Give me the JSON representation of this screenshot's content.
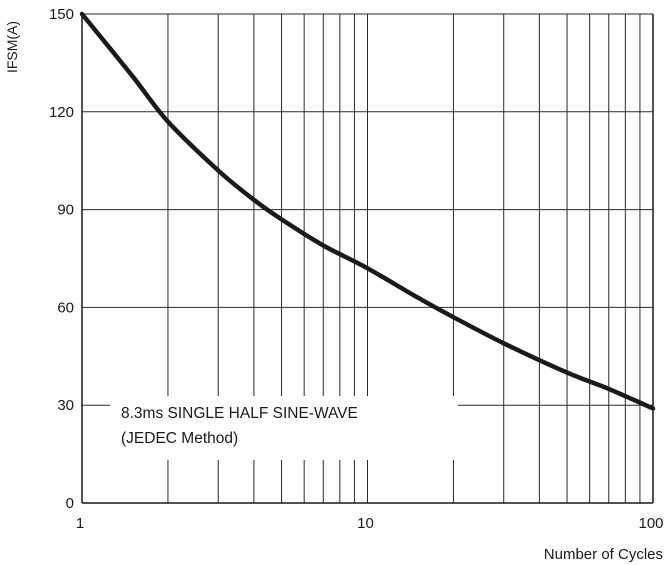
{
  "chart_data": {
    "type": "line",
    "title": "",
    "xlabel": "Number of Cycles",
    "ylabel": "IFSM(A)",
    "x_scale": "log",
    "xlim": [
      1,
      100
    ],
    "ylim": [
      0,
      150
    ],
    "x_ticks": [
      "1",
      "10",
      "100"
    ],
    "y_ticks": [
      "0",
      "30",
      "60",
      "90",
      "120",
      "150"
    ],
    "grid": true,
    "annotation": [
      "8.3ms SINGLE HALF SINE-WAVE",
      "(JEDEC Method)"
    ],
    "series": [
      {
        "x": [
          1,
          1.5,
          2,
          3,
          4,
          5,
          7,
          10,
          15,
          20,
          30,
          50,
          70,
          100
        ],
        "y": [
          150,
          131,
          117,
          102,
          93,
          87,
          79,
          72,
          63,
          57,
          49,
          40,
          35,
          29
        ]
      }
    ]
  }
}
